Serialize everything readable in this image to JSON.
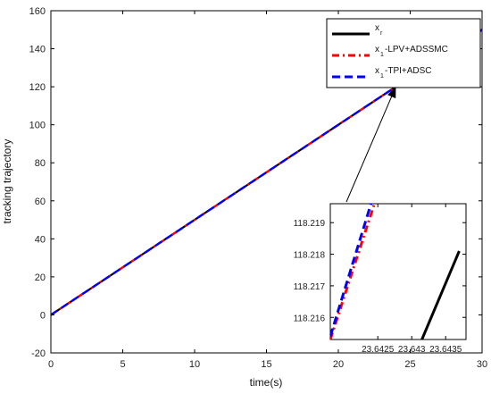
{
  "chart_data": {
    "type": "line",
    "xlabel": "time(s)",
    "ylabel": "tracking trajectory",
    "xlim": [
      0,
      30
    ],
    "ylim": [
      -20,
      160
    ],
    "xticks": [
      "0",
      "5",
      "10",
      "15",
      "20",
      "25",
      "30"
    ],
    "yticks": [
      "-20",
      "0",
      "20",
      "40",
      "60",
      "80",
      "100",
      "120",
      "140",
      "160"
    ],
    "grid": false,
    "legend_placement": "top-right",
    "legend": [
      {
        "var": "x",
        "sub": "r",
        "suffix": ""
      },
      {
        "var": "x",
        "sub": "1",
        "suffix": "-LPV+ADSSMC"
      },
      {
        "var": "x",
        "sub": "1",
        "suffix": "-TPI+ADSC"
      }
    ],
    "series": [
      {
        "key": "ref",
        "color": "#000000",
        "style": "solid",
        "x": [
          0,
          30
        ],
        "y": [
          0,
          150
        ]
      },
      {
        "key": "lpv",
        "color": "#ff0000",
        "style": "dashdot",
        "x": [
          0,
          30
        ],
        "y": [
          0,
          150
        ]
      },
      {
        "key": "tpi",
        "color": "#0000ff",
        "style": "dashed",
        "x": [
          0,
          30
        ],
        "y": [
          0,
          150
        ]
      }
    ],
    "inset": {
      "xlim": [
        23.6418,
        23.6438
      ],
      "ylim": [
        118.2153,
        118.2196
      ],
      "xticks": [
        "23.6425",
        "23.643",
        "23.6435"
      ],
      "xtick_values": [
        23.6425,
        23.643,
        23.6435
      ],
      "yticks": [
        "118.216",
        "118.217",
        "118.218",
        "118.219"
      ],
      "ytick_values": [
        118.216,
        118.217,
        118.218,
        118.219
      ],
      "series": [
        {
          "key": "ref",
          "color": "#000000",
          "style": "solid",
          "x": [
            23.64315,
            23.6437
          ],
          "y": [
            118.2153,
            118.2181
          ]
        },
        {
          "key": "lpv",
          "color": "#ff0000",
          "style": "dashdot",
          "x": [
            23.6418,
            23.64245
          ],
          "y": [
            118.2153,
            118.2196
          ]
        },
        {
          "key": "tpi",
          "color": "#0000ff",
          "style": "dashed",
          "x": [
            23.6418,
            23.6424
          ],
          "y": [
            118.2154,
            118.2196
          ]
        }
      ]
    },
    "annotation": {
      "type": "arrow",
      "points_to": {
        "x": 24,
        "y": 120
      }
    }
  }
}
